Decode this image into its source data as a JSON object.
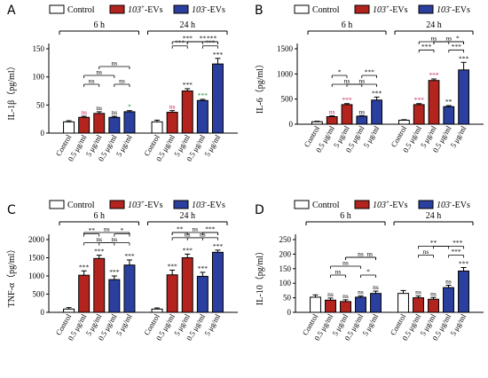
{
  "colors": {
    "control": "#ffffff",
    "p103": "#b3241f",
    "m103": "#2a3f9e",
    "green": "#1b8a3a",
    "pink": "#c2185b",
    "black": "#000000"
  },
  "legend": {
    "control": "Control",
    "p103_prefix": "103",
    "p103_sup": "+",
    "p103_suffix": "-EVs",
    "m103_prefix": "103",
    "m103_sup": "-",
    "m103_suffix": "-EVs"
  },
  "groups": {
    "left": "6 h",
    "right": "24 h"
  },
  "categories": [
    "Control",
    "0.5 μg/ml",
    "5 μg/ml",
    "0.5 μg/ml",
    "5 μg/ml"
  ],
  "chart_data": [
    {
      "panel": "A",
      "type": "bar",
      "ylabel": "IL-1β（pg/ml）",
      "ylim": [
        0,
        150
      ],
      "yticks": [
        0,
        50,
        100,
        150
      ],
      "groups": [
        "6 h",
        "24 h"
      ],
      "categories": [
        "Control",
        "0.5 μg/ml",
        "5 μg/ml",
        "0.5 μg/ml",
        "5 μg/ml"
      ],
      "series_colors": [
        "control",
        "p103",
        "p103",
        "m103",
        "m103"
      ],
      "values": [
        [
          20,
          28,
          35,
          28,
          38
        ],
        [
          20,
          37,
          75,
          58,
          123
        ]
      ],
      "errors": [
        [
          2,
          2,
          3,
          2,
          2
        ],
        [
          3,
          3,
          4,
          2,
          10
        ]
      ],
      "labels": [
        [
          "",
          "ns",
          "ns",
          "ns",
          "*"
        ],
        [
          "",
          "ns",
          "***",
          "***",
          "***"
        ]
      ],
      "label_colors": [
        [
          "",
          "pink",
          "black",
          "black",
          "green"
        ],
        [
          "",
          "pink",
          "black",
          "green",
          "black"
        ]
      ],
      "brackets": [
        [
          {
            "from": 1,
            "to": 2,
            "level": 0,
            "text": "ns"
          },
          {
            "from": 3,
            "to": 4,
            "level": 0,
            "text": "ns"
          },
          {
            "from": 1,
            "to": 3,
            "level": 1,
            "text": "ns"
          },
          {
            "from": 2,
            "to": 4,
            "level": 2,
            "text": "ns"
          }
        ],
        [
          {
            "from": 1,
            "to": 2,
            "level": 0,
            "text": "***"
          },
          {
            "from": 3,
            "to": 4,
            "level": 0,
            "text": "***"
          },
          {
            "from": 1,
            "to": 3,
            "level": 1,
            "text": "***"
          },
          {
            "from": 2,
            "to": 4,
            "level": 2,
            "text": "**"
          },
          {
            "from": 2,
            "to": 4,
            "level": 2,
            "text": "***",
            "textpos": "right"
          }
        ]
      ]
    },
    {
      "panel": "B",
      "type": "bar",
      "ylabel": "IL-6（pg/ml）",
      "ylim": [
        0,
        1500
      ],
      "yticks": [
        0,
        500,
        1000,
        1500
      ],
      "groups": [
        "6 h",
        "24 h"
      ],
      "categories": [
        "Control",
        "0.5 μg/ml",
        "5 μg/ml",
        "0.5 μg/ml",
        "5 μg/ml"
      ],
      "series_colors": [
        "control",
        "p103",
        "p103",
        "m103",
        "m103"
      ],
      "values": [
        [
          50,
          150,
          390,
          160,
          480
        ],
        [
          80,
          390,
          870,
          350,
          1080
        ]
      ],
      "errors": [
        [
          10,
          15,
          20,
          10,
          60
        ],
        [
          10,
          20,
          30,
          20,
          150
        ]
      ],
      "labels": [
        [
          "",
          "ns",
          "***",
          "ns",
          "***"
        ],
        [
          "",
          "***",
          "***",
          "**",
          "***"
        ]
      ],
      "label_colors": [
        [
          "",
          "pink",
          "pink",
          "black",
          "black"
        ],
        [
          "",
          "pink",
          "pink",
          "black",
          "black"
        ]
      ],
      "brackets": [
        [
          {
            "from": 1,
            "to": 3,
            "level": 0,
            "text": "ns"
          },
          {
            "from": 2,
            "to": 4,
            "level": 0,
            "text": "ns"
          },
          {
            "from": 1,
            "to": 2,
            "level": 1,
            "text": "*"
          },
          {
            "from": 3,
            "to": 4,
            "level": 1,
            "text": "***"
          }
        ],
        [
          {
            "from": 1,
            "to": 2,
            "level": 0,
            "text": "***"
          },
          {
            "from": 3,
            "to": 4,
            "level": 0,
            "text": "***"
          },
          {
            "from": 1,
            "to": 3,
            "level": 1,
            "text": "ns"
          },
          {
            "from": 2,
            "to": 4,
            "level": 2,
            "text": "ns"
          },
          {
            "from": 2,
            "to": 4,
            "level": 2,
            "text": "*",
            "textpos": "right"
          }
        ]
      ]
    },
    {
      "panel": "C",
      "type": "bar",
      "ylabel": "TNF-α（pg/ml）",
      "ylim": [
        0,
        2000
      ],
      "yticks": [
        0,
        500,
        1000,
        1500,
        2000
      ],
      "groups": [
        "6 h",
        "24 h"
      ],
      "categories": [
        "Control",
        "0.5 μg/ml",
        "5 μg/ml",
        "0.5 μg/ml",
        "5 μg/ml"
      ],
      "series_colors": [
        "control",
        "p103",
        "p103",
        "m103",
        "m103"
      ],
      "values": [
        [
          90,
          1020,
          1480,
          900,
          1300
        ],
        [
          90,
          1030,
          1500,
          990,
          1650
        ]
      ],
      "errors": [
        [
          40,
          120,
          90,
          100,
          140
        ],
        [
          30,
          130,
          100,
          110,
          60
        ]
      ],
      "labels": [
        [
          "",
          "***",
          "***",
          "***",
          "***"
        ],
        [
          "",
          "***",
          "***",
          "***",
          "***"
        ]
      ],
      "label_colors": [
        [
          "",
          "black",
          "black",
          "black",
          "black"
        ],
        [
          "",
          "black",
          "black",
          "black",
          "black"
        ]
      ],
      "brackets": [
        [
          {
            "from": 1,
            "to": 3,
            "level": 0,
            "text": "ns"
          },
          {
            "from": 2,
            "to": 4,
            "level": 0,
            "text": "ns"
          },
          {
            "from": 1,
            "to": 2,
            "level": 1,
            "text": "**"
          },
          {
            "from": 3,
            "to": 4,
            "level": 1,
            "text": "*"
          },
          {
            "from": 1,
            "to": 4,
            "level": 2,
            "text": "ns"
          }
        ],
        [
          {
            "from": 1,
            "to": 3,
            "level": 0,
            "text": "ns"
          },
          {
            "from": 2,
            "to": 4,
            "level": 0,
            "text": "ns"
          },
          {
            "from": 1,
            "to": 2,
            "level": 1,
            "text": "**"
          },
          {
            "from": 3,
            "to": 4,
            "level": 1,
            "text": "***"
          },
          {
            "from": 1,
            "to": 4,
            "level": 2,
            "text": "ns"
          }
        ]
      ]
    },
    {
      "panel": "D",
      "type": "bar",
      "ylabel": "IL-10（pg/ml）",
      "ylim": [
        0,
        250
      ],
      "yticks": [
        0,
        50,
        100,
        150,
        200,
        250
      ],
      "groups": [
        "6 h",
        "24 h"
      ],
      "categories": [
        "Control",
        "0.5 μg/ml",
        "5 μg/ml",
        "0.5 μg/ml",
        "5 μg/ml"
      ],
      "series_colors": [
        "control",
        "p103",
        "p103",
        "m103",
        "m103"
      ],
      "values": [
        [
          52,
          42,
          37,
          52,
          65
        ],
        [
          65,
          50,
          45,
          85,
          142
        ]
      ],
      "errors": [
        [
          8,
          7,
          6,
          4,
          8
        ],
        [
          10,
          6,
          6,
          8,
          12
        ]
      ],
      "labels": [
        [
          "",
          "ns",
          "ns",
          "ns",
          "ns"
        ],
        [
          "",
          "ns",
          "ns",
          "ns",
          "***"
        ]
      ],
      "label_colors": [
        [
          "",
          "black",
          "black",
          "black",
          "black"
        ],
        [
          "",
          "black",
          "black",
          "black",
          "black"
        ]
      ],
      "brackets": [
        [
          {
            "from": 1,
            "to": 2,
            "level": 0,
            "text": "ns"
          },
          {
            "from": 3,
            "to": 4,
            "level": 0,
            "text": "*"
          },
          {
            "from": 1,
            "to": 3,
            "level": 1,
            "text": "ns"
          },
          {
            "from": 2,
            "to": 4,
            "level": 2,
            "text": "ns"
          },
          {
            "from": 2,
            "to": 4,
            "level": 2,
            "text": "ns",
            "textpos": "right"
          }
        ],
        [
          {
            "from": 1,
            "to": 2,
            "level": 0,
            "text": "ns"
          },
          {
            "from": 3,
            "to": 4,
            "level": 0,
            "text": "***"
          },
          {
            "from": 1,
            "to": 3,
            "level": 1,
            "text": "**"
          },
          {
            "from": 2,
            "to": 4,
            "level": 1,
            "text": "***",
            "textpos": "right"
          }
        ]
      ]
    }
  ]
}
